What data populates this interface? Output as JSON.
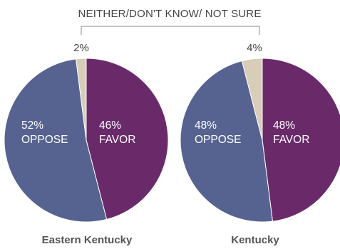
{
  "chart_data": [
    {
      "type": "pie",
      "title": "Eastern Kentucky",
      "slices": [
        {
          "label": "FAVOR",
          "value": 46,
          "display": "46%",
          "color": "#6a2a6a"
        },
        {
          "label": "OPPOSE",
          "value": 52,
          "display": "52%",
          "color": "#566391"
        },
        {
          "label": "NEITHER/DON'T KNOW/ NOT SURE",
          "value": 2,
          "display": "2%",
          "color": "#d8cdb8"
        }
      ]
    },
    {
      "type": "pie",
      "title": "Kentucky",
      "slices": [
        {
          "label": "FAVOR",
          "value": 48,
          "display": "48%",
          "color": "#6a2a6a"
        },
        {
          "label": "OPPOSE",
          "value": 48,
          "display": "48%",
          "color": "#566391"
        },
        {
          "label": "NEITHER/DON'T KNOW/ NOT SURE",
          "value": 4,
          "display": "4%",
          "color": "#d8cdb8"
        }
      ]
    }
  ],
  "neutral_label": "NEITHER/DON'T KNOW/ NOT SURE"
}
